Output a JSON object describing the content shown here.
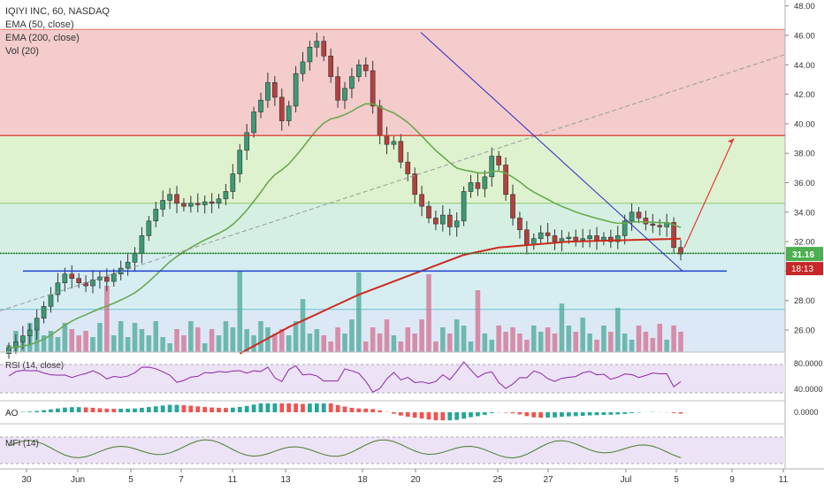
{
  "chart_data": {
    "type": "candlestick",
    "title": "IQIYI INC, 60, NASDAQ",
    "indicators_legend": [
      "EMA (50, close)",
      "EMA (200, close)",
      "Vol (20)"
    ],
    "price_axis": {
      "ticks": [
        "48.00",
        "46.00",
        "44.00",
        "42.00",
        "40.00",
        "38.00",
        "36.00",
        "34.00",
        "32.00",
        "30.00",
        "28.00",
        "26.00"
      ],
      "range": [
        24.5,
        48.4
      ]
    },
    "x_axis_labels": [
      "30",
      "Jun",
      "5",
      "7",
      "11",
      "13",
      "18",
      "20",
      "25",
      "27",
      "Jul",
      "5",
      "9",
      "11"
    ],
    "last_price": "31.16",
    "countdown": "18:13",
    "close_series_approx": [
      24.8,
      25.2,
      25.6,
      26.0,
      26.8,
      27.6,
      28.4,
      29.2,
      29.8,
      29.5,
      29.2,
      29.0,
      29.4,
      29.6,
      29.3,
      29.8,
      30.2,
      30.6,
      31.2,
      32.4,
      33.4,
      34.2,
      34.8,
      35.2,
      34.6,
      34.4,
      34.6,
      34.5,
      34.7,
      34.6,
      34.9,
      35.4,
      36.6,
      38.2,
      39.4,
      40.8,
      41.6,
      42.8,
      41.8,
      40.2,
      41.2,
      43.4,
      44.2,
      45.2,
      45.6,
      44.6,
      43.2,
      41.6,
      42.4,
      43.2,
      44.0,
      43.6,
      41.2,
      39.2,
      38.6,
      38.8,
      37.4,
      36.6,
      35.2,
      34.4,
      33.6,
      33.2,
      33.8,
      33.0,
      33.4,
      35.4,
      36.0,
      35.6,
      36.4,
      37.8,
      37.2,
      35.2,
      33.6,
      32.8,
      31.8,
      32.2,
      32.6,
      32.4,
      32.0,
      32.2,
      32.3,
      32.1,
      32.2,
      32.4,
      32.1,
      32.3,
      32.0,
      32.4,
      33.4,
      34.0,
      33.6,
      33.2,
      33.1,
      33.0,
      33.3,
      31.6,
      31.16
    ],
    "fib_levels": [
      46.4,
      39.2,
      34.6,
      31.2,
      27.4
    ],
    "horizontal_lines": [
      39.2,
      31.2,
      30.0
    ],
    "rsi": {
      "label": "RSI (14, close)",
      "ticks": [
        "80.0000",
        "40.0000"
      ]
    },
    "ao": {
      "label": "AO",
      "ticks": [
        "0.0000"
      ]
    },
    "mfi": {
      "label": "MFI (14)"
    }
  }
}
